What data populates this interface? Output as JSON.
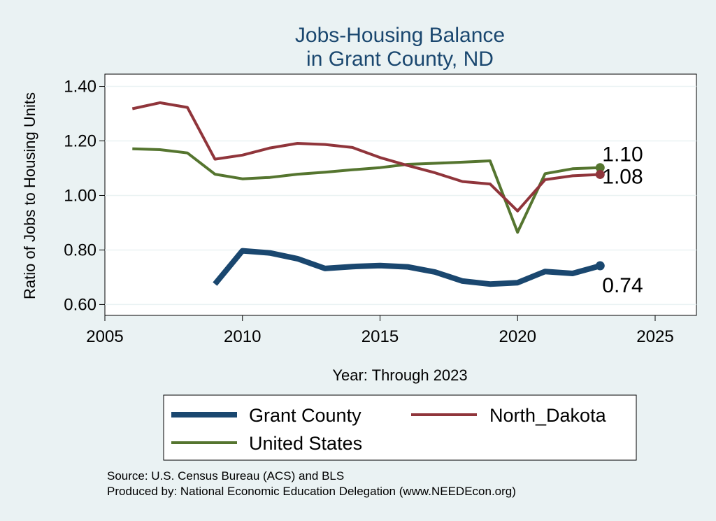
{
  "chart_data": {
    "type": "line",
    "title": [
      "Jobs-Housing Balance",
      "in Grant County, ND"
    ],
    "xlabel": "Year: Through 2023",
    "ylabel": "Ratio of Jobs to Housing Units",
    "xlim": [
      2005,
      2026.5
    ],
    "ylim": [
      0.56,
      1.445
    ],
    "xticks": [
      2005,
      2010,
      2015,
      2020,
      2025
    ],
    "yticks": [
      0.6,
      0.8,
      1.0,
      1.2,
      1.4
    ],
    "ytick_labels": [
      "0.60",
      "0.80",
      "1.00",
      "1.20",
      "1.40"
    ],
    "grid": true,
    "series": [
      {
        "name": "Grant County",
        "color": "#1a476f",
        "x": [
          2009,
          2010,
          2011,
          2012,
          2013,
          2014,
          2015,
          2016,
          2017,
          2018,
          2019,
          2020,
          2021,
          2022,
          2023
        ],
        "values": [
          0.675,
          0.797,
          0.789,
          0.768,
          0.732,
          0.739,
          0.743,
          0.738,
          0.719,
          0.686,
          0.675,
          0.68,
          0.721,
          0.714,
          0.742
        ],
        "end_label": "0.74"
      },
      {
        "name": "North_Dakota",
        "color": "#90353b",
        "x": [
          2006,
          2007,
          2008,
          2009,
          2010,
          2011,
          2012,
          2013,
          2014,
          2015,
          2016,
          2017,
          2018,
          2019,
          2020,
          2021,
          2022,
          2023
        ],
        "values": [
          1.318,
          1.34,
          1.323,
          1.133,
          1.148,
          1.174,
          1.191,
          1.187,
          1.176,
          1.139,
          1.11,
          1.083,
          1.051,
          1.042,
          0.943,
          1.058,
          1.072,
          1.077
        ],
        "end_label": "1.08"
      },
      {
        "name": "United States",
        "color": "#55752f",
        "x": [
          2006,
          2007,
          2008,
          2009,
          2010,
          2011,
          2012,
          2013,
          2014,
          2015,
          2016,
          2017,
          2018,
          2019,
          2020,
          2021,
          2022,
          2023
        ],
        "values": [
          1.171,
          1.168,
          1.156,
          1.078,
          1.061,
          1.066,
          1.078,
          1.085,
          1.094,
          1.102,
          1.114,
          1.118,
          1.122,
          1.127,
          0.865,
          1.08,
          1.098,
          1.102
        ],
        "end_label": "1.10"
      }
    ],
    "legend": [
      "Grant County",
      "North_Dakota",
      "United States"
    ],
    "source_lines": [
      "Source: U.S. Census Bureau (ACS) and BLS",
      "Produced by: National Economic Education Delegation (www.NEEDEcon.org)"
    ]
  },
  "colors": {
    "title": "#1a476f",
    "background": "#eaf2f3",
    "plot": "#ffffff",
    "grid": "#eaf2f3"
  }
}
